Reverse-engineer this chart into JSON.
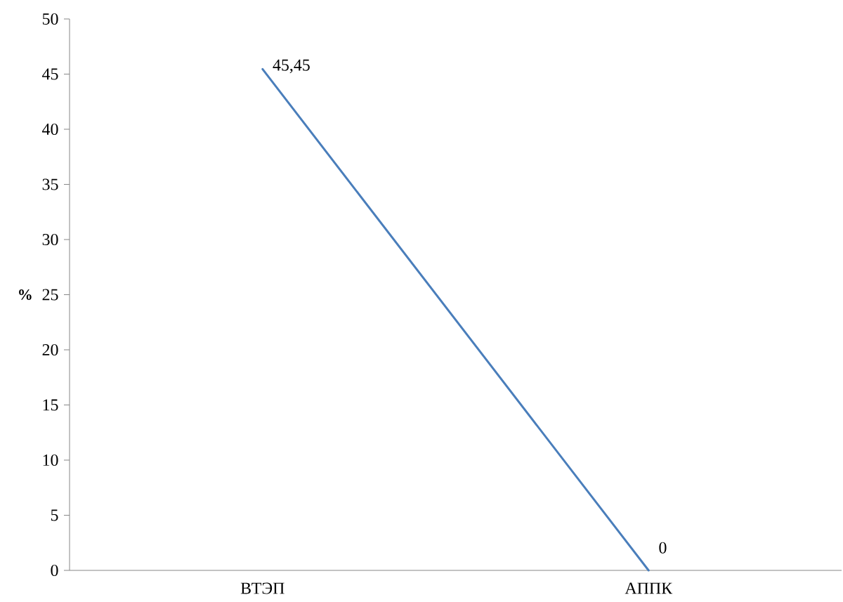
{
  "chart_data": {
    "type": "line",
    "ylabel": "%",
    "categories": [
      "ВТЭП",
      "АППК"
    ],
    "values": [
      45.45,
      0
    ],
    "color": "#4a7ebb",
    "value_labels": [
      "45,45",
      "0"
    ],
    "ylim": [
      0,
      50
    ],
    "yticks": [
      0,
      5,
      10,
      15,
      20,
      25,
      30,
      35,
      40,
      45,
      50
    ]
  }
}
